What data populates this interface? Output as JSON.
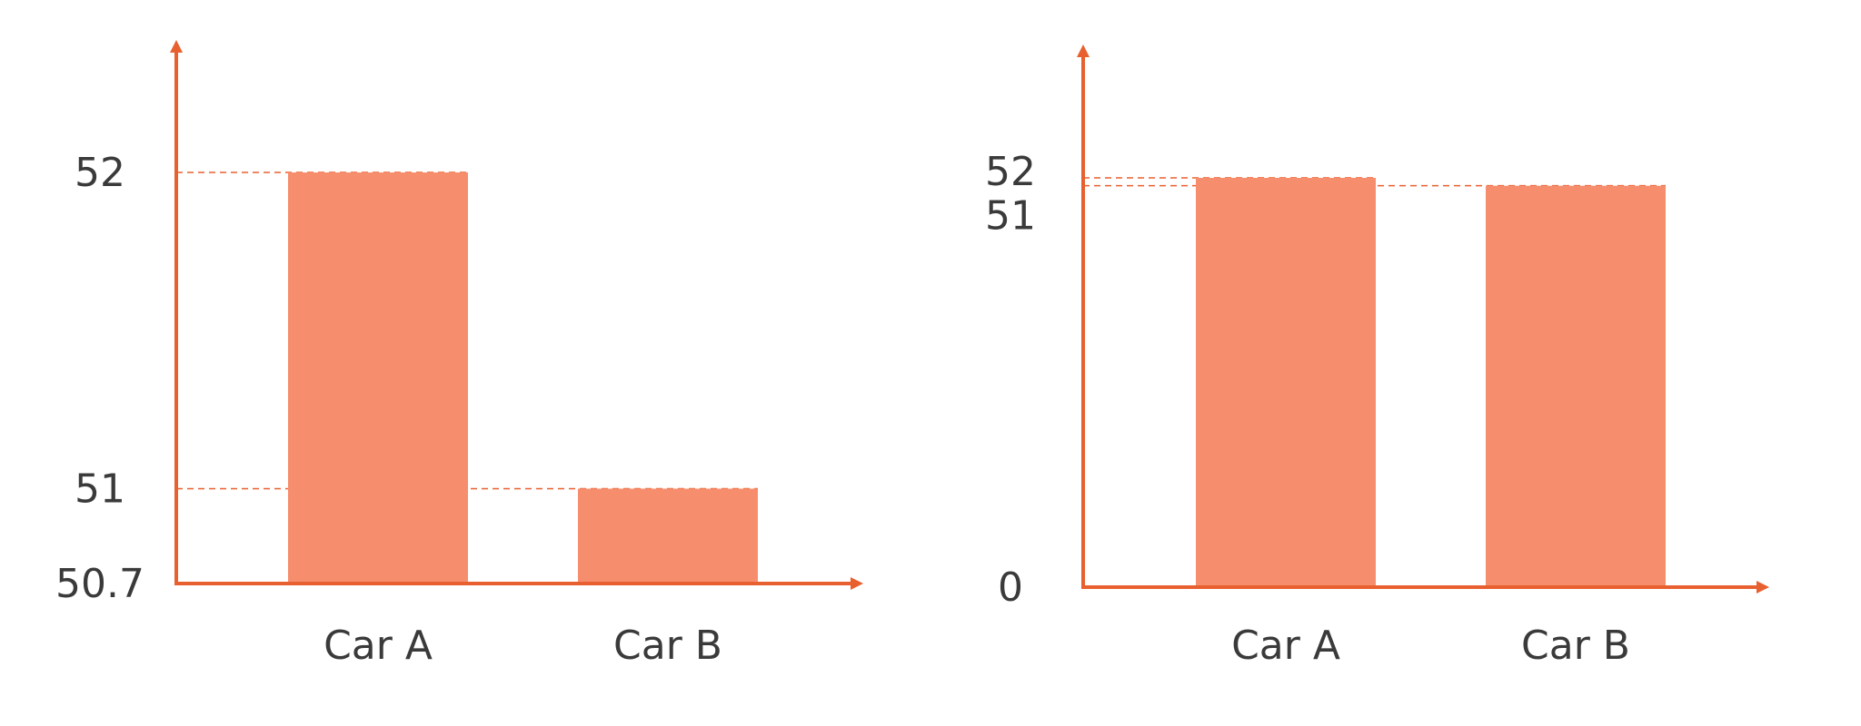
{
  "colors": {
    "axis": "#e8602f",
    "bar": "#f68e6e",
    "guide": "#e8602f",
    "text": "#3a3a3a"
  },
  "chart_data": [
    {
      "type": "bar",
      "categories": [
        "Car A",
        "Car B"
      ],
      "values": [
        52,
        51
      ],
      "ylim": [
        50.7,
        52.3
      ],
      "yticks": [
        50.7,
        51,
        52
      ],
      "ytick_labels": [
        "50.7",
        "51",
        "52"
      ],
      "guide_lines": [
        52,
        51
      ],
      "grid": false,
      "title": "",
      "xlabel": "",
      "ylabel": ""
    },
    {
      "type": "bar",
      "categories": [
        "Car A",
        "Car B"
      ],
      "values": [
        52,
        51
      ],
      "ylim": [
        0,
        57.5
      ],
      "yticks": [
        0,
        51,
        52
      ],
      "ytick_labels": [
        "0",
        "51",
        "52"
      ],
      "guide_lines": [
        52,
        51
      ],
      "grid": false,
      "title": "",
      "xlabel": "",
      "ylabel": ""
    }
  ]
}
